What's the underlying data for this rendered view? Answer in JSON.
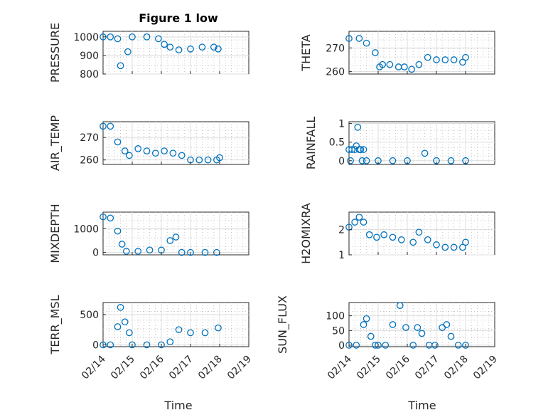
{
  "figure": {
    "title": "Figure 1 low"
  },
  "colors": {
    "marker": "#0072BD",
    "axis": "#262626",
    "grid": "#dcdcdc"
  },
  "chart_data": [
    {
      "type": "scatter",
      "ylabel": "PRESSURE",
      "xlabel": "",
      "title": "Figure 1 low",
      "xlim": [
        0,
        5
      ],
      "ylim": [
        800,
        1030
      ],
      "yticks": [
        800,
        900,
        1000
      ],
      "xtick_labels": [
        "02/14",
        "02/15",
        "02/16",
        "02/17",
        "02/18",
        "02/19"
      ],
      "x": [
        0,
        0.25,
        0.5,
        0.6,
        0.85,
        1.0,
        1.5,
        1.9,
        2.1,
        2.3,
        2.6,
        3.0,
        3.4,
        3.8,
        3.95
      ],
      "y": [
        1000,
        1000,
        990,
        845,
        920,
        1000,
        1000,
        990,
        960,
        945,
        930,
        935,
        945,
        945,
        935
      ]
    },
    {
      "type": "scatter",
      "ylabel": "THETA",
      "xlabel": "",
      "xlim": [
        0,
        5
      ],
      "ylim": [
        259,
        277
      ],
      "yticks": [
        260,
        270
      ],
      "xtick_labels": [
        "02/14",
        "02/15",
        "02/16",
        "02/17",
        "02/18",
        "02/19"
      ],
      "x": [
        0,
        0.35,
        0.6,
        0.9,
        1.05,
        1.15,
        1.4,
        1.7,
        1.9,
        2.15,
        2.4,
        2.7,
        3.0,
        3.3,
        3.6,
        3.9,
        4.0
      ],
      "y": [
        274,
        274,
        272,
        268,
        262,
        263,
        263,
        262,
        262,
        261,
        263,
        266,
        265,
        265,
        265,
        264,
        266
      ]
    },
    {
      "type": "scatter",
      "ylabel": "AIR_TEMP",
      "xlabel": "",
      "xlim": [
        0,
        5
      ],
      "ylim": [
        258,
        277
      ],
      "yticks": [
        260,
        270
      ],
      "xtick_labels": [
        "02/14",
        "02/15",
        "02/16",
        "02/17",
        "02/18",
        "02/19"
      ],
      "x": [
        0,
        0.25,
        0.5,
        0.75,
        0.9,
        1.2,
        1.5,
        1.8,
        2.1,
        2.4,
        2.7,
        3.0,
        3.3,
        3.6,
        3.9,
        4.0
      ],
      "y": [
        275,
        275,
        268,
        264,
        262,
        265,
        264,
        263,
        264,
        263,
        262,
        260,
        260,
        260,
        260,
        261
      ]
    },
    {
      "type": "scatter",
      "ylabel": "RAINFALL",
      "xlabel": "",
      "xlim": [
        0,
        5
      ],
      "ylim": [
        -0.1,
        1.05
      ],
      "yticks": [
        0,
        0.5,
        1
      ],
      "ytick_labels": [
        "0",
        "0.5",
        "1"
      ],
      "xtick_labels": [
        "02/14",
        "02/15",
        "02/16",
        "02/17",
        "02/18",
        "02/19"
      ],
      "x": [
        0,
        0.05,
        0.1,
        0.2,
        0.25,
        0.3,
        0.35,
        0.4,
        0.45,
        0.5,
        0.6,
        1.0,
        1.5,
        2.0,
        2.6,
        3.0,
        3.5,
        4.0
      ],
      "y": [
        0.3,
        0,
        0.3,
        0.3,
        0.4,
        0.9,
        0.3,
        0.3,
        0,
        0.3,
        0,
        0,
        0,
        0,
        0.2,
        0,
        0,
        0
      ]
    },
    {
      "type": "scatter",
      "ylabel": "MIXDEPTH",
      "xlabel": "",
      "xlim": [
        0,
        5
      ],
      "ylim": [
        -100,
        1700
      ],
      "yticks": [
        0,
        1000
      ],
      "xtick_labels": [
        "02/14",
        "02/15",
        "02/16",
        "02/17",
        "02/18",
        "02/19"
      ],
      "x": [
        0,
        0.25,
        0.5,
        0.65,
        0.8,
        1.2,
        1.6,
        2.0,
        2.3,
        2.5,
        2.7,
        3.0,
        3.5,
        3.9
      ],
      "y": [
        1500,
        1450,
        900,
        350,
        50,
        50,
        100,
        100,
        500,
        650,
        0,
        0,
        0,
        0
      ]
    },
    {
      "type": "scatter",
      "ylabel": "H2OMIXRA",
      "xlabel": "",
      "xlim": [
        0,
        5
      ],
      "ylim": [
        1,
        2.7
      ],
      "yticks": [
        1,
        2
      ],
      "xtick_labels": [
        "02/14",
        "02/15",
        "02/16",
        "02/17",
        "02/18",
        "02/19"
      ],
      "x": [
        0,
        0.2,
        0.35,
        0.5,
        0.7,
        0.95,
        1.2,
        1.5,
        1.8,
        2.2,
        2.4,
        2.7,
        3.0,
        3.3,
        3.6,
        3.9,
        4.0
      ],
      "y": [
        2.1,
        2.3,
        2.5,
        2.3,
        1.8,
        1.7,
        1.8,
        1.7,
        1.6,
        1.5,
        1.9,
        1.6,
        1.4,
        1.3,
        1.3,
        1.3,
        1.5
      ]
    },
    {
      "type": "scatter",
      "ylabel": "TERR_MSL",
      "xlabel": "Time",
      "xlim": [
        0,
        5
      ],
      "ylim": [
        -30,
        700
      ],
      "yticks": [
        0,
        500
      ],
      "xtick_labels": [
        "02/14",
        "02/15",
        "02/16",
        "02/17",
        "02/18",
        "02/19"
      ],
      "x": [
        0,
        0.25,
        0.5,
        0.6,
        0.75,
        0.9,
        1.0,
        1.5,
        2.0,
        2.3,
        2.6,
        3.0,
        3.5,
        3.95
      ],
      "y": [
        0,
        0,
        300,
        620,
        380,
        200,
        0,
        0,
        0,
        50,
        250,
        200,
        200,
        280
      ]
    },
    {
      "type": "scatter",
      "ylabel": "SUN_FLUX",
      "xlabel": "Time",
      "xlim": [
        0,
        5
      ],
      "ylim": [
        -5,
        145
      ],
      "yticks": [
        0,
        50,
        100
      ],
      "xtick_labels": [
        "02/14",
        "02/15",
        "02/16",
        "02/17",
        "02/18",
        "02/19"
      ],
      "x": [
        0,
        0.25,
        0.5,
        0.6,
        0.75,
        0.9,
        1.0,
        1.25,
        1.5,
        1.75,
        1.95,
        2.2,
        2.35,
        2.5,
        2.75,
        2.95,
        3.2,
        3.35,
        3.5,
        3.75,
        4.0
      ],
      "y": [
        0,
        0,
        70,
        90,
        30,
        0,
        0,
        0,
        70,
        135,
        60,
        0,
        60,
        40,
        0,
        0,
        60,
        70,
        30,
        0,
        0
      ]
    }
  ]
}
